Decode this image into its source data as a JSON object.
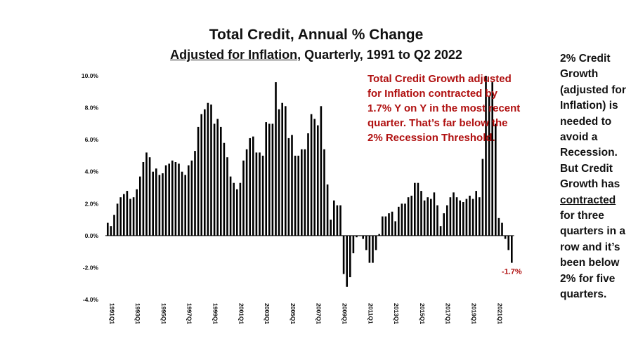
{
  "title": "Total Credit, Annual % Change",
  "subtitle": {
    "part1": "Adjusted for Inflation",
    "part2": ", Quarterly, 1991 to Q2 2022"
  },
  "annotation": "Total Credit Growth adjusted for Inflation contracted by 1.7% Y on Y in the most recent quarter. That’s far below the 2% Recession Threshold.",
  "sidenote": {
    "part1": "2% Credit Growth (adjusted for Inflation) is needed to avoid a Recession. But Credit Growth has ",
    "underlined": "contracted",
    "part2": " for three quarters in a row and it’s been below 2% for five quarters."
  },
  "last_value_label": "-1.7%",
  "colors": {
    "bar": "#000000",
    "annotation": "#b01010",
    "text": "#111111"
  },
  "chart_data": {
    "type": "bar",
    "ylim": [
      -4,
      10
    ],
    "yticks": [
      -4,
      -2,
      0,
      2,
      4,
      6,
      8,
      10
    ],
    "ytick_labels": [
      "-4.0%",
      "-2.0%",
      "0.0%",
      "2.0%",
      "4.0%",
      "6.0%",
      "8.0%",
      "10.0%"
    ],
    "xtick_labels": [
      "1991Q1",
      "1993Q1",
      "1995Q1",
      "1997Q1",
      "1999Q1",
      "2001Q1",
      "2003Q1",
      "2005Q1",
      "2007Q1",
      "2009Q1",
      "2011Q1",
      "2013Q1",
      "2015Q1",
      "2017Q1",
      "2019Q1",
      "2021Q1"
    ],
    "grid": false,
    "categories": [
      "1991Q1",
      "1991Q2",
      "1991Q3",
      "1991Q4",
      "1992Q1",
      "1992Q2",
      "1992Q3",
      "1992Q4",
      "1993Q1",
      "1993Q2",
      "1993Q3",
      "1993Q4",
      "1994Q1",
      "1994Q2",
      "1994Q3",
      "1994Q4",
      "1995Q1",
      "1995Q2",
      "1995Q3",
      "1995Q4",
      "1996Q1",
      "1996Q2",
      "1996Q3",
      "1996Q4",
      "1997Q1",
      "1997Q2",
      "1997Q3",
      "1997Q4",
      "1998Q1",
      "1998Q2",
      "1998Q3",
      "1998Q4",
      "1999Q1",
      "1999Q2",
      "1999Q3",
      "1999Q4",
      "2000Q1",
      "2000Q2",
      "2000Q3",
      "2000Q4",
      "2001Q1",
      "2001Q2",
      "2001Q3",
      "2001Q4",
      "2002Q1",
      "2002Q2",
      "2002Q3",
      "2002Q4",
      "2003Q1",
      "2003Q2",
      "2003Q3",
      "2003Q4",
      "2004Q1",
      "2004Q2",
      "2004Q3",
      "2004Q4",
      "2005Q1",
      "2005Q2",
      "2005Q3",
      "2005Q4",
      "2006Q1",
      "2006Q2",
      "2006Q3",
      "2006Q4",
      "2007Q1",
      "2007Q2",
      "2007Q3",
      "2007Q4",
      "2008Q1",
      "2008Q2",
      "2008Q3",
      "2008Q4",
      "2009Q1",
      "2009Q2",
      "2009Q3",
      "2009Q4",
      "2010Q1",
      "2010Q2",
      "2010Q3",
      "2010Q4",
      "2011Q1",
      "2011Q2",
      "2011Q3",
      "2011Q4",
      "2012Q1",
      "2012Q2",
      "2012Q3",
      "2012Q4",
      "2013Q1",
      "2013Q2",
      "2013Q3",
      "2013Q4",
      "2014Q1",
      "2014Q2",
      "2014Q3",
      "2014Q4",
      "2015Q1",
      "2015Q2",
      "2015Q3",
      "2015Q4",
      "2016Q1",
      "2016Q2",
      "2016Q3",
      "2016Q4",
      "2017Q1",
      "2017Q2",
      "2017Q3",
      "2017Q4",
      "2018Q1",
      "2018Q2",
      "2018Q3",
      "2018Q4",
      "2019Q1",
      "2019Q2",
      "2019Q3",
      "2019Q4",
      "2020Q1",
      "2020Q2",
      "2020Q3",
      "2020Q4",
      "2021Q1",
      "2021Q2",
      "2021Q3",
      "2021Q4",
      "2022Q1",
      "2022Q2"
    ],
    "values": [
      0.8,
      0.6,
      1.3,
      2.0,
      2.4,
      2.6,
      2.8,
      2.3,
      2.4,
      2.9,
      3.7,
      4.6,
      5.2,
      4.9,
      4.0,
      4.2,
      3.8,
      3.9,
      4.4,
      4.5,
      4.7,
      4.6,
      4.5,
      4.0,
      3.8,
      4.4,
      4.7,
      5.3,
      6.8,
      7.6,
      7.9,
      8.3,
      8.2,
      7.0,
      7.3,
      6.8,
      5.8,
      4.9,
      3.7,
      3.3,
      2.9,
      3.3,
      4.7,
      5.4,
      6.1,
      6.2,
      5.2,
      5.2,
      5.0,
      7.1,
      7.0,
      7.0,
      9.6,
      7.9,
      8.3,
      8.1,
      6.1,
      6.3,
      5.0,
      5.0,
      5.4,
      5.4,
      6.4,
      7.6,
      7.3,
      6.9,
      8.1,
      5.4,
      3.2,
      1.0,
      2.2,
      1.9,
      1.9,
      -2.4,
      -3.2,
      -2.6,
      -1.1,
      -0.1,
      0.0,
      -0.2,
      -0.9,
      -1.7,
      -1.7,
      -0.9,
      0.1,
      1.2,
      1.2,
      1.4,
      1.5,
      0.9,
      1.8,
      2.0,
      2.0,
      2.4,
      2.5,
      3.3,
      3.3,
      2.8,
      2.2,
      2.4,
      2.3,
      2.7,
      1.9,
      0.6,
      1.4,
      1.9,
      2.4,
      2.7,
      2.4,
      2.2,
      2.1,
      2.3,
      2.5,
      2.3,
      2.8,
      2.4,
      4.8,
      10.0,
      8.7,
      9.6,
      7.0,
      1.1,
      0.8,
      -0.2,
      -0.9,
      -1.7
    ]
  }
}
